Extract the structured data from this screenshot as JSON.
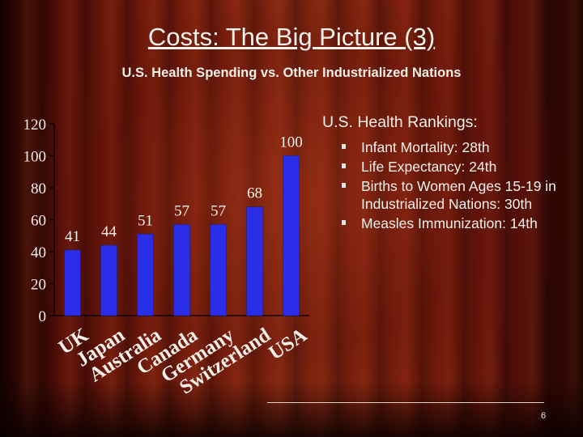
{
  "slide": {
    "title": "Costs: The Big Picture (3)",
    "subtitle": "U.S. Health Spending vs. Other Industrialized Nations",
    "page_number": "6"
  },
  "rankings": {
    "heading": "U.S. Health Rankings:",
    "items": [
      "Infant Mortality: 28th",
      "Life Expectancy: 24th",
      "Births to Women Ages 15-19 in Industrialized Nations: 30th",
      "Measles Immunization: 14th"
    ]
  },
  "colors": {
    "bar": "#2a2ee8",
    "background": "#6b1608",
    "text": "#f3efe9"
  },
  "chart_data": {
    "type": "bar",
    "categories": [
      "UK",
      "Japan",
      "Australia",
      "Canada",
      "Germany",
      "Switzerland",
      "USA"
    ],
    "values": [
      41,
      44,
      51,
      57,
      57,
      68,
      100
    ],
    "data_labels": [
      "41",
      "44",
      "51",
      "57",
      "57",
      "68",
      "100"
    ],
    "yticks": [
      "0",
      "20",
      "40",
      "60",
      "80",
      "100",
      "120"
    ],
    "ylim": [
      0,
      120
    ],
    "title": "",
    "xlabel": "",
    "ylabel": "",
    "grid": false,
    "legend": "none"
  }
}
